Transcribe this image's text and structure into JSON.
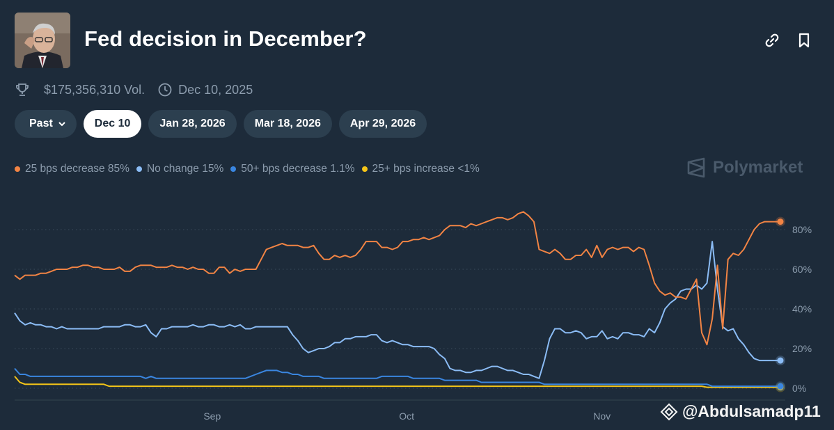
{
  "header": {
    "title": "Fed decision in December?",
    "volume": "$175,356,310 Vol.",
    "date": "Dec 10, 2025"
  },
  "tabs": [
    {
      "label": "Past",
      "active": false
    },
    {
      "label": "Dec 10",
      "active": true
    },
    {
      "label": "Jan 28, 2026",
      "active": false
    },
    {
      "label": "Mar 18, 2026",
      "active": false
    },
    {
      "label": "Apr 29, 2026",
      "active": false
    }
  ],
  "legend": [
    {
      "label": "25 bps decrease 85%",
      "color": "#f28444"
    },
    {
      "label": "No change 15%",
      "color": "#8bbcf5"
    },
    {
      "label": "50+ bps decrease 1.1%",
      "color": "#3a86e0"
    },
    {
      "label": "25+ bps increase <1%",
      "color": "#f5c518"
    }
  ],
  "brand": "Polymarket",
  "watermark": "@Abdulsamadp11",
  "chart_data": {
    "type": "line",
    "x_ticks": [
      "Sep",
      "Oct",
      "Nov"
    ],
    "y_ticks": [
      "80%",
      "60%",
      "40%",
      "20%",
      "0%"
    ],
    "ylim": [
      0,
      100
    ],
    "series": [
      {
        "name": "25 bps decrease",
        "color": "#f28444",
        "values": [
          57,
          55,
          57,
          57,
          57,
          58,
          58,
          59,
          60,
          60,
          60,
          61,
          61,
          62,
          62,
          61,
          61,
          60,
          60,
          60,
          61,
          59,
          59,
          61,
          62,
          62,
          62,
          61,
          61,
          61,
          62,
          61,
          61,
          60,
          61,
          60,
          60,
          58,
          58,
          61,
          61,
          58,
          60,
          59,
          60,
          60,
          60,
          65,
          70,
          71,
          72,
          73,
          72,
          72,
          72,
          71,
          71,
          72,
          68,
          65,
          65,
          67,
          66,
          67,
          66,
          67,
          70,
          74,
          74,
          74,
          71,
          71,
          70,
          71,
          74,
          74,
          75,
          75,
          76,
          75,
          76,
          77,
          80,
          82,
          82,
          82,
          81,
          83,
          82,
          83,
          84,
          85,
          86,
          86,
          85,
          86,
          88,
          89,
          87,
          84,
          70,
          69,
          68,
          70,
          68,
          65,
          65,
          67,
          67,
          70,
          66,
          72,
          66,
          70,
          71,
          70,
          71,
          71,
          69,
          71,
          70,
          62,
          53,
          49,
          47,
          48,
          46,
          46,
          45,
          50,
          55,
          28,
          22,
          35,
          62,
          30,
          65,
          68,
          67,
          70,
          75,
          80,
          83,
          84,
          84,
          84,
          84
        ]
      },
      {
        "name": "No change",
        "color": "#8bbcf5",
        "values": [
          38,
          34,
          32,
          33,
          32,
          32,
          31,
          31,
          30,
          31,
          30,
          30,
          30,
          30,
          30,
          30,
          30,
          31,
          31,
          31,
          31,
          32,
          32,
          31,
          31,
          32,
          28,
          26,
          30,
          30,
          31,
          31,
          31,
          31,
          32,
          31,
          31,
          32,
          32,
          31,
          31,
          32,
          31,
          32,
          30,
          30,
          31,
          31,
          31,
          31,
          31,
          31,
          31,
          27,
          24,
          20,
          18,
          19,
          20,
          20,
          21,
          23,
          23,
          25,
          25,
          26,
          26,
          26,
          27,
          27,
          24,
          23,
          24,
          23,
          22,
          22,
          21,
          21,
          21,
          21,
          20,
          17,
          15,
          10,
          9,
          9,
          8,
          8,
          9,
          9,
          10,
          11,
          11,
          10,
          9,
          9,
          8,
          7,
          7,
          6,
          5,
          14,
          25,
          30,
          30,
          28,
          28,
          29,
          28,
          25,
          26,
          26,
          29,
          25,
          26,
          25,
          28,
          28,
          27,
          27,
          26,
          30,
          28,
          33,
          40,
          43,
          45,
          49,
          50,
          50,
          52,
          50,
          53,
          74,
          50,
          31,
          29,
          30,
          25,
          22,
          18,
          15,
          14,
          14,
          14,
          14,
          14
        ]
      },
      {
        "name": "50+ bps decrease",
        "color": "#3a86e0",
        "values": [
          10,
          7,
          7,
          6,
          6,
          6,
          6,
          6,
          6,
          6,
          6,
          6,
          6,
          6,
          6,
          6,
          6,
          6,
          6,
          6,
          6,
          6,
          6,
          6,
          6,
          5,
          6,
          5,
          5,
          5,
          5,
          5,
          5,
          5,
          5,
          5,
          5,
          5,
          5,
          5,
          5,
          5,
          5,
          5,
          5,
          6,
          7,
          8,
          9,
          9,
          9,
          8,
          8,
          7,
          7,
          6,
          6,
          6,
          6,
          5,
          5,
          5,
          5,
          5,
          5,
          5,
          5,
          5,
          5,
          5,
          6,
          6,
          6,
          6,
          6,
          6,
          5,
          5,
          5,
          5,
          5,
          5,
          4,
          4,
          4,
          4,
          4,
          4,
          4,
          3,
          3,
          3,
          3,
          3,
          3,
          3,
          3,
          3,
          3,
          3,
          3,
          2,
          2,
          2,
          2,
          2,
          2,
          2,
          2,
          2,
          2,
          2,
          2,
          2,
          2,
          2,
          2,
          2,
          2,
          2,
          2,
          2,
          2,
          2,
          2,
          2,
          2,
          2,
          2,
          2,
          2,
          2,
          2,
          1,
          1,
          1,
          1,
          1,
          1,
          1,
          1,
          1,
          1,
          1,
          1,
          1,
          1
        ]
      },
      {
        "name": "25+ bps increase",
        "color": "#f5c518",
        "values": [
          6,
          3,
          2,
          2,
          2,
          2,
          2,
          2,
          2,
          2,
          2,
          2,
          2,
          2,
          2,
          2,
          2,
          2,
          1,
          1,
          1,
          1,
          1,
          1,
          1,
          1,
          1,
          1,
          1,
          1,
          1,
          1,
          1,
          1,
          1,
          1,
          1,
          1,
          1,
          1,
          1,
          1,
          1,
          1,
          1,
          1,
          1,
          1,
          1,
          1,
          1,
          1,
          1,
          1,
          1,
          1,
          1,
          1,
          1,
          1,
          1,
          1,
          1,
          1,
          1,
          1,
          1,
          1,
          1,
          1,
          1,
          1,
          1,
          1,
          1,
          1,
          1,
          1,
          1,
          1,
          1,
          1,
          1,
          1,
          1,
          1,
          1,
          1,
          1,
          1,
          1,
          1,
          1,
          1,
          1,
          1,
          1,
          1,
          1,
          1,
          1,
          1,
          1,
          1,
          1,
          1,
          1,
          1,
          1,
          1,
          1,
          1,
          1,
          1,
          1,
          1,
          1,
          1,
          1,
          1,
          1,
          1,
          1,
          1,
          1,
          1,
          1,
          1,
          1,
          1,
          1,
          1,
          0.5,
          0.5,
          0.5,
          0.5,
          0.5,
          0.5,
          0.5,
          0.5,
          0.5,
          0.5,
          0.5,
          0.5,
          0.5,
          0.5,
          0.5
        ]
      }
    ]
  }
}
